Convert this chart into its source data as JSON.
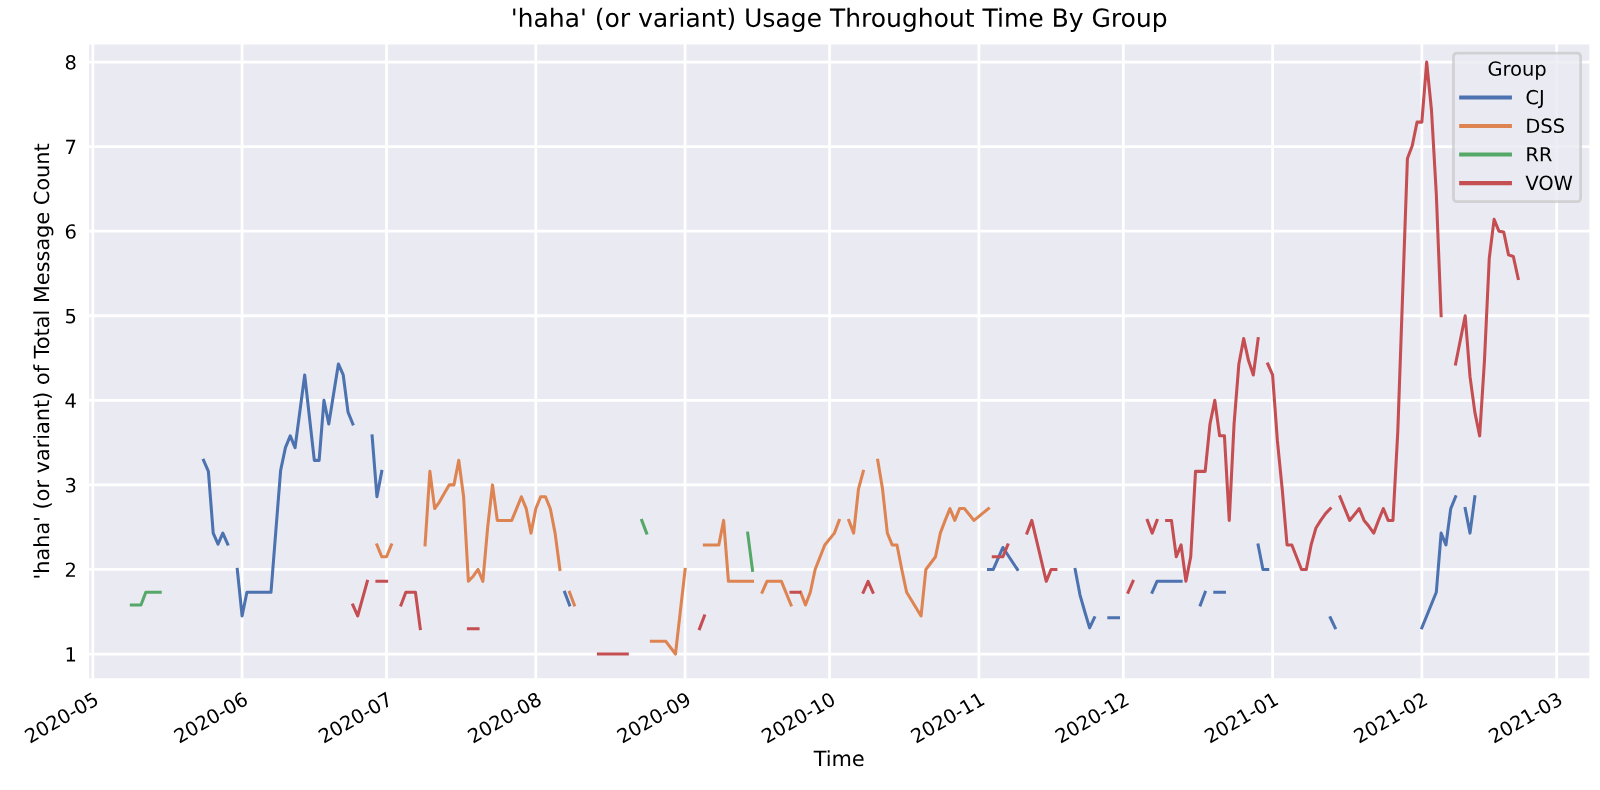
{
  "chart_data": {
    "type": "line",
    "title": "'haha' (or variant) Usage Throughout Time By Group",
    "xlabel": "Time",
    "ylabel": "'haha' (or variant) of Total Message Count",
    "legend_title": "Group",
    "legend": "top right",
    "grid": true,
    "xlim": [
      "2020-04-30",
      "2021-03-08"
    ],
    "ylim": [
      0.7,
      8.22
    ],
    "yticks": [
      1,
      2,
      3,
      4,
      5,
      6,
      7,
      8
    ],
    "xticks": [
      {
        "value": "2020-05-01",
        "label": "2020-05"
      },
      {
        "value": "2020-06-01",
        "label": "2020-06"
      },
      {
        "value": "2020-07-01",
        "label": "2020-07"
      },
      {
        "value": "2020-08-01",
        "label": "2020-08"
      },
      {
        "value": "2020-09-01",
        "label": "2020-09"
      },
      {
        "value": "2020-10-01",
        "label": "2020-10"
      },
      {
        "value": "2020-11-01",
        "label": "2020-11"
      },
      {
        "value": "2020-12-01",
        "label": "2020-12"
      },
      {
        "value": "2021-01-01",
        "label": "2021-01"
      },
      {
        "value": "2021-02-01",
        "label": "2021-02"
      },
      {
        "value": "2021-03-01",
        "label": "2021-03"
      }
    ],
    "series": [
      {
        "name": "CJ",
        "color": "#4c72b0",
        "x": [
          "2020-05-24",
          "2020-05-25",
          "2020-05-26",
          "2020-05-27",
          "2020-05-28",
          "2020-05-29",
          "2020-05-30",
          "2020-05-31",
          "2020-06-01",
          "2020-06-02",
          "2020-06-07",
          "2020-06-09",
          "2020-06-10",
          "2020-06-11",
          "2020-06-12",
          "2020-06-14",
          "2020-06-16",
          "2020-06-17",
          "2020-06-18",
          "2020-06-19",
          "2020-06-21",
          "2020-06-22",
          "2020-06-23",
          "2020-06-24",
          "2020-06-26",
          "2020-06-28",
          "2020-06-29",
          "2020-06-30",
          "2020-07-15",
          "2020-08-07",
          "2020-08-08",
          "2020-09-01",
          "2020-11-03",
          "2020-11-04",
          "2020-11-06",
          "2020-11-09",
          "2020-11-15",
          "2020-11-21",
          "2020-11-22",
          "2020-11-23",
          "2020-11-24",
          "2020-11-25",
          "2020-11-27",
          "2020-11-28",
          "2020-11-30",
          "2020-12-03",
          "2020-12-07",
          "2020-12-08",
          "2020-12-13",
          "2020-12-15",
          "2020-12-17",
          "2020-12-18",
          "2020-12-19",
          "2020-12-20",
          "2020-12-22",
          "2020-12-25",
          "2020-12-29",
          "2020-12-30",
          "2020-12-31",
          "2021-01-05",
          "2021-01-13",
          "2021-01-14",
          "2021-01-20",
          "2021-02-01",
          "2021-02-04",
          "2021-02-05",
          "2021-02-06",
          "2021-02-07",
          "2021-02-08",
          "2021-02-09",
          "2021-02-10",
          "2021-02-11",
          "2021-02-12"
        ],
        "values": [
          3.29,
          3.16,
          2.43,
          2.3,
          2.43,
          2.3,
          null,
          2.0,
          1.45,
          1.73,
          1.73,
          3.17,
          3.44,
          3.58,
          3.44,
          4.3,
          3.29,
          3.29,
          4.0,
          3.72,
          4.43,
          4.3,
          3.86,
          3.72,
          null,
          3.58,
          2.86,
          3.16,
          null,
          1.73,
          1.58,
          null,
          2.0,
          2.0,
          2.26,
          2.0,
          null,
          2.0,
          1.7,
          1.5,
          1.31,
          1.43,
          null,
          1.43,
          1.43,
          null,
          1.73,
          1.86,
          1.86,
          null,
          1.58,
          1.73,
          null,
          1.73,
          1.73,
          null,
          2.29,
          2.0,
          2.0,
          null,
          1.43,
          1.31,
          null,
          1.31,
          1.73,
          2.43,
          2.29,
          2.72,
          2.86,
          null,
          2.72,
          2.43,
          2.86
        ]
      },
      {
        "name": "DSS",
        "color": "#dd8452",
        "x": [
          "2020-06-29",
          "2020-06-30",
          "2020-07-01",
          "2020-07-02",
          "2020-07-05",
          "2020-07-09",
          "2020-07-10",
          "2020-07-11",
          "2020-07-12",
          "2020-07-13",
          "2020-07-14",
          "2020-07-15",
          "2020-07-16",
          "2020-07-17",
          "2020-07-18",
          "2020-07-19",
          "2020-07-20",
          "2020-07-21",
          "2020-07-22",
          "2020-07-23",
          "2020-07-24",
          "2020-07-27",
          "2020-07-28",
          "2020-07-29",
          "2020-07-30",
          "2020-07-31",
          "2020-08-01",
          "2020-08-02",
          "2020-08-03",
          "2020-08-04",
          "2020-08-05",
          "2020-08-06",
          "2020-08-07",
          "2020-08-08",
          "2020-08-09",
          "2020-08-15",
          "2020-08-25",
          "2020-08-28",
          "2020-08-30",
          "2020-09-01",
          "2020-09-03",
          "2020-09-05",
          "2020-09-08",
          "2020-09-09",
          "2020-09-10",
          "2020-09-15",
          "2020-09-16",
          "2020-09-17",
          "2020-09-18",
          "2020-09-21",
          "2020-09-23",
          "2020-09-24",
          "2020-09-25",
          "2020-09-26",
          "2020-09-27",
          "2020-09-28",
          "2020-09-30",
          "2020-10-02",
          "2020-10-03",
          "2020-10-04",
          "2020-10-05",
          "2020-10-06",
          "2020-10-07",
          "2020-10-08",
          "2020-10-10",
          "2020-10-11",
          "2020-10-12",
          "2020-10-13",
          "2020-10-14",
          "2020-10-15",
          "2020-10-16",
          "2020-10-17",
          "2020-10-20",
          "2020-10-21",
          "2020-10-23",
          "2020-10-24",
          "2020-10-25",
          "2020-10-26",
          "2020-10-27",
          "2020-10-28",
          "2020-10-29",
          "2020-10-31",
          "2020-11-03"
        ],
        "values": [
          2.29,
          2.15,
          2.15,
          2.29,
          null,
          2.29,
          3.16,
          2.72,
          2.8,
          2.9,
          3.0,
          3.0,
          3.29,
          2.86,
          1.86,
          1.92,
          2.0,
          1.86,
          2.5,
          3.0,
          2.58,
          2.58,
          2.72,
          2.86,
          2.72,
          2.43,
          2.72,
          2.86,
          2.86,
          2.72,
          2.43,
          2.0,
          null,
          1.73,
          1.58,
          null,
          1.15,
          1.15,
          1.0,
          2.0,
          null,
          2.29,
          2.29,
          2.58,
          1.86,
          1.86,
          null,
          1.73,
          1.86,
          1.86,
          1.58,
          null,
          1.73,
          1.58,
          1.73,
          2.0,
          2.29,
          2.43,
          2.58,
          null,
          2.58,
          2.43,
          2.95,
          3.16,
          null,
          3.29,
          2.95,
          2.43,
          2.29,
          2.29,
          2.0,
          1.73,
          1.45,
          2.0,
          2.15,
          2.43,
          2.58,
          2.72,
          2.58,
          2.72,
          2.72,
          2.58,
          2.72
        ]
      },
      {
        "name": "RR",
        "color": "#55a868",
        "x": [
          "2020-05-09",
          "2020-05-11",
          "2020-05-12",
          "2020-05-15",
          "2020-08-01",
          "2020-08-23",
          "2020-08-24",
          "2020-09-01",
          "2020-09-14",
          "2020-09-15"
        ],
        "values": [
          1.58,
          1.58,
          1.73,
          1.73,
          null,
          2.58,
          2.43,
          null,
          2.43,
          1.99
        ]
      },
      {
        "name": "VOW",
        "color": "#c44e52",
        "x": [
          "2020-06-24",
          "2020-06-25",
          "2020-06-27",
          "2020-06-28",
          "2020-06-29",
          "2020-07-01",
          "2020-07-02",
          "2020-07-04",
          "2020-07-05",
          "2020-07-07",
          "2020-07-08",
          "2020-07-12",
          "2020-07-18",
          "2020-07-20",
          "2020-08-01",
          "2020-08-14",
          "2020-08-20",
          "2020-08-30",
          "2020-09-04",
          "2020-09-05",
          "2020-09-15",
          "2020-09-23",
          "2020-09-24T18:00",
          "2020-10-01",
          "2020-10-08",
          "2020-10-09",
          "2020-10-10",
          "2020-10-20",
          "2020-11-04",
          "2020-11-06",
          "2020-11-07",
          "2020-11-09",
          "2020-11-11",
          "2020-11-12",
          "2020-11-15",
          "2020-11-16",
          "2020-11-17",
          "2020-11-25",
          "2020-12-02",
          "2020-12-03",
          "2020-12-04",
          "2020-12-06",
          "2020-12-07",
          "2020-12-08",
          "2020-12-09",
          "2020-12-10",
          "2020-12-11",
          "2020-12-12",
          "2020-12-13",
          "2020-12-14",
          "2020-12-15",
          "2020-12-16",
          "2020-12-18",
          "2020-12-19",
          "2020-12-20",
          "2020-12-21",
          "2020-12-22",
          "2020-12-23",
          "2020-12-24",
          "2020-12-25",
          "2020-12-26",
          "2020-12-27",
          "2020-12-28",
          "2020-12-29",
          "2020-12-30",
          "2020-12-31",
          "2021-01-01",
          "2021-01-02",
          "2021-01-03",
          "2021-01-04",
          "2021-01-05",
          "2021-01-07",
          "2021-01-08",
          "2021-01-09",
          "2021-01-10",
          "2021-01-11",
          "2021-01-12",
          "2021-01-13",
          "2021-01-14",
          "2021-01-15",
          "2021-01-17",
          "2021-01-19",
          "2021-01-20",
          "2021-01-21",
          "2021-01-22",
          "2021-01-23",
          "2021-01-24",
          "2021-01-25",
          "2021-01-26",
          "2021-01-27",
          "2021-01-29",
          "2021-01-30",
          "2021-01-31",
          "2021-02-01",
          "2021-02-02",
          "2021-02-03",
          "2021-02-04",
          "2021-02-05",
          "2021-02-06",
          "2021-02-08",
          "2021-02-10",
          "2021-02-11",
          "2021-02-12",
          "2021-02-13",
          "2021-02-14",
          "2021-02-15",
          "2021-02-16",
          "2021-02-17",
          "2021-02-18",
          "2021-02-19",
          "2021-02-20",
          "2021-02-21"
        ],
        "values": [
          1.58,
          1.45,
          1.86,
          null,
          1.86,
          1.86,
          null,
          1.58,
          1.73,
          1.73,
          1.3,
          null,
          1.3,
          1.3,
          null,
          1.0,
          1.0,
          null,
          1.3,
          1.45,
          null,
          1.73,
          1.73,
          null,
          1.73,
          1.86,
          1.73,
          null,
          2.15,
          2.15,
          2.29,
          null,
          2.43,
          2.58,
          1.86,
          2.0,
          2.0,
          null,
          1.73,
          1.86,
          null,
          2.58,
          2.43,
          2.58,
          null,
          2.58,
          2.58,
          2.15,
          2.29,
          1.86,
          2.15,
          3.16,
          3.16,
          3.72,
          4.0,
          3.58,
          3.58,
          2.58,
          3.72,
          4.43,
          4.73,
          4.47,
          4.3,
          4.73,
          null,
          4.43,
          4.3,
          3.52,
          2.95,
          2.29,
          2.29,
          2.0,
          2.0,
          2.29,
          2.49,
          2.58,
          2.66,
          2.72,
          null,
          2.86,
          2.58,
          2.72,
          2.58,
          2.51,
          2.43,
          2.58,
          2.72,
          2.58,
          2.58,
          3.63,
          6.86,
          7.01,
          7.29,
          7.29,
          8.0,
          7.43,
          6.44,
          5.0,
          null,
          4.43,
          5.0,
          4.28,
          3.86,
          3.58,
          4.47,
          5.68,
          6.14,
          6.0,
          5.99,
          5.72,
          5.7,
          5.44
        ]
      }
    ]
  }
}
